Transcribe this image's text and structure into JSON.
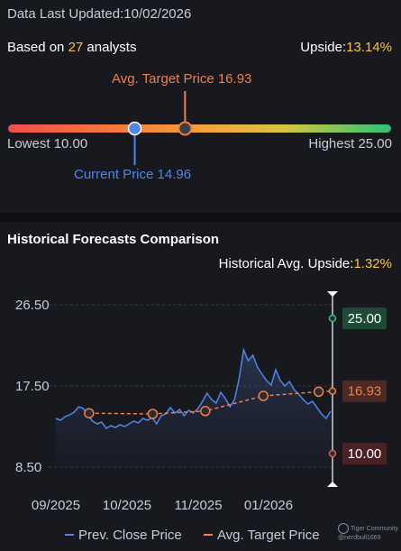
{
  "header": {
    "last_updated_label": "Data Last Updated:",
    "last_updated_value": "10/02/2026",
    "based_on_prefix": "Based on ",
    "analyst_count": "27",
    "based_on_suffix": " analysts",
    "upside_label": "Upside:",
    "upside_value": "13.14%"
  },
  "gauge": {
    "avg_target_label": "Avg. Target Price 16.93",
    "current_price_label": "Current Price 14.96",
    "lowest_label": "Lowest 10.00",
    "highest_label": "Highest 25.00",
    "low": 10.0,
    "high": 25.0,
    "current": 14.96,
    "avg_target": 16.93,
    "colors": {
      "current": "#4f86e8",
      "avg": "#f07f4a"
    }
  },
  "section": {
    "title": "Historical Forecasts Comparison",
    "hist_upside_label": "Historical Avg. Upside:",
    "hist_upside_value": "1.32%"
  },
  "chart_data": {
    "type": "line",
    "title": "",
    "xlabel": "",
    "ylabel": "",
    "ylim": [
      8.5,
      26.5
    ],
    "yticks": [
      "26.50",
      "17.50",
      "8.50"
    ],
    "xticks": [
      "09/2025",
      "10/2025",
      "11/2025",
      "01/2026"
    ],
    "series": [
      {
        "name": "Prev. Close Price",
        "color": "#4f86e8",
        "values": [
          13.9,
          13.7,
          14.1,
          14.3,
          14.6,
          15.2,
          15.0,
          14.3,
          13.6,
          13.3,
          13.5,
          12.8,
          13.1,
          12.9,
          13.2,
          13.0,
          13.3,
          13.6,
          13.4,
          13.9,
          13.7,
          14.0,
          13.3,
          14.2,
          14.4,
          15.1,
          14.5,
          14.9,
          14.2,
          14.8,
          14.5,
          15.0,
          15.8,
          16.7,
          16.0,
          15.6,
          16.8,
          16.1,
          15.2,
          16.0,
          18.3,
          21.5,
          20.3,
          20.9,
          19.6,
          18.8,
          18.1,
          17.6,
          19.3,
          18.1,
          17.5,
          18.0,
          17.1,
          16.6,
          16.0,
          15.5,
          15.8,
          15.1,
          14.4,
          13.9,
          14.7
        ]
      },
      {
        "name": "Avg. Target Price",
        "color": "#f07f4a",
        "points": [
          {
            "x": 0.12,
            "y": 14.48
          },
          {
            "x": 0.35,
            "y": 14.4
          },
          {
            "x": 0.54,
            "y": 14.72
          },
          {
            "x": 0.75,
            "y": 16.4
          },
          {
            "x": 0.95,
            "y": 16.86
          },
          {
            "x": 1.0,
            "y": 16.93
          }
        ]
      }
    ],
    "markers": {
      "highest_value": "25.00",
      "avg_value": "16.93",
      "lowest_value": "10.00",
      "highest": 25.0,
      "avg": 16.93,
      "lowest": 10.0
    }
  },
  "legend": {
    "prev_close": "Prev. Close Price",
    "avg_target": "Avg. Target Price"
  },
  "watermark": {
    "line1": "Tiger Community",
    "line2": "@nerdbull1669"
  }
}
